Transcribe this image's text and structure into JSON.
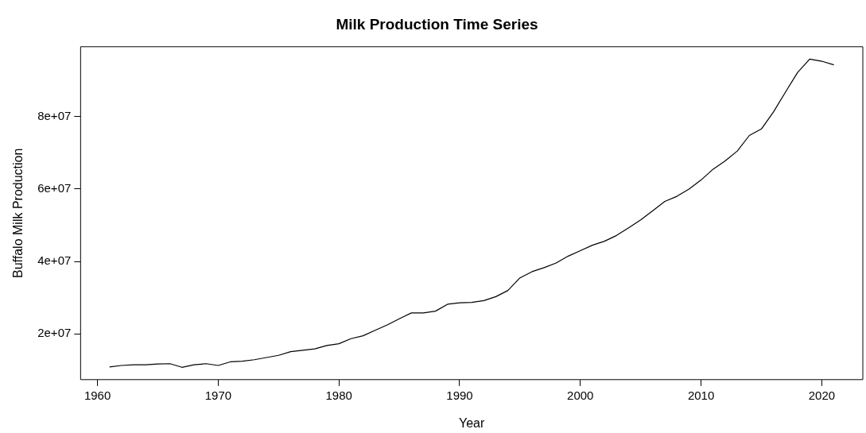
{
  "chart_data": {
    "type": "line",
    "title": "Milk Production Time Series",
    "xlabel": "Year",
    "ylabel": "Buffalo Milk Production",
    "x": [
      1961,
      1962,
      1963,
      1964,
      1965,
      1966,
      1967,
      1968,
      1969,
      1970,
      1971,
      1972,
      1973,
      1974,
      1975,
      1976,
      1977,
      1978,
      1979,
      1980,
      1981,
      1982,
      1983,
      1984,
      1985,
      1986,
      1987,
      1988,
      1989,
      1990,
      1991,
      1992,
      1993,
      1994,
      1995,
      1996,
      1997,
      1998,
      1999,
      2000,
      2001,
      2002,
      2003,
      2004,
      2005,
      2006,
      2007,
      2008,
      2009,
      2010,
      2011,
      2012,
      2013,
      2014,
      2015,
      2016,
      2017,
      2018,
      2019,
      2020,
      2021
    ],
    "series": [
      {
        "color": "#000000",
        "values": [
          10900000,
          11300000,
          11500000,
          11500000,
          11700000,
          11800000,
          10800000,
          11500000,
          11800000,
          11300000,
          12300000,
          12500000,
          12900000,
          13500000,
          14100000,
          15100000,
          15500000,
          15900000,
          16800000,
          17300000,
          18700000,
          19500000,
          21000000,
          22500000,
          24200000,
          25800000,
          25800000,
          26300000,
          28200000,
          28600000,
          28700000,
          29200000,
          30300000,
          32000000,
          35500000,
          37200000,
          38300000,
          39600000,
          41500000,
          43000000,
          44500000,
          45600000,
          47200000,
          49300000,
          51500000,
          54000000,
          56600000,
          58000000,
          60000000,
          62500000,
          65500000,
          67800000,
          70500000,
          74800000,
          76600000,
          81300000,
          86800000,
          92200000,
          95900000,
          95300000,
          94300000
        ]
      }
    ],
    "xlim": [
      1958.6,
      2023.4
    ],
    "ylim": [
      7400000,
      99300000
    ],
    "xticks": [
      1960,
      1970,
      1980,
      1990,
      2000,
      2010,
      2020
    ],
    "yticks": [
      {
        "value": 20000000,
        "label": "2e+07"
      },
      {
        "value": 40000000,
        "label": "4e+07"
      },
      {
        "value": 60000000,
        "label": "6e+07"
      },
      {
        "value": 80000000,
        "label": "8e+07"
      }
    ],
    "grid": false,
    "legend": false,
    "marker": "none",
    "line_style": "solid"
  }
}
